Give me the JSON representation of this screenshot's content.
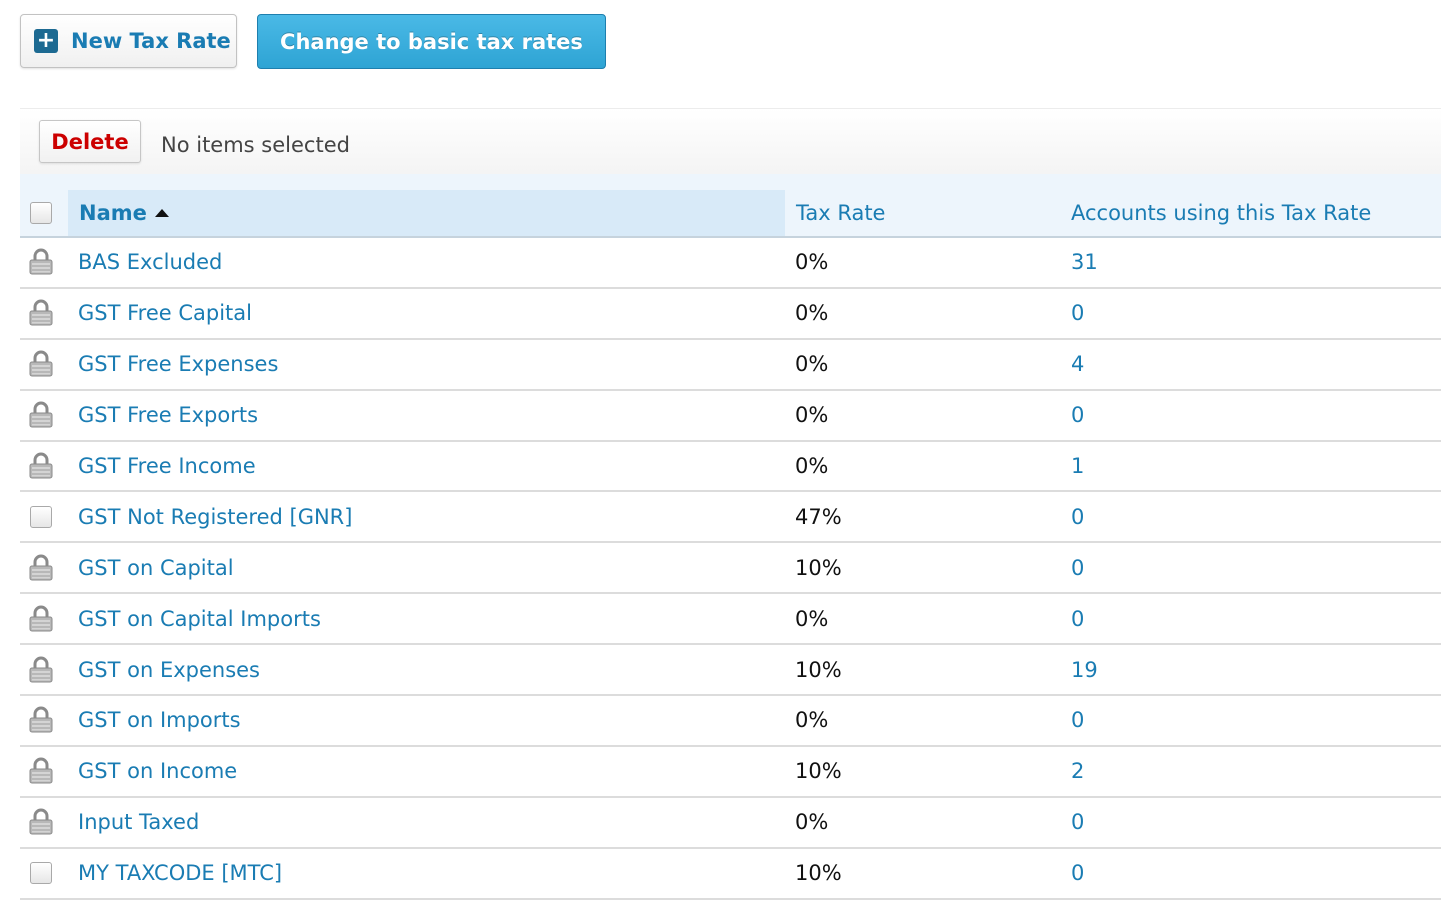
{
  "toolbar": {
    "new_tax_rate_label": "New Tax Rate",
    "change_basic_label": "Change to basic tax rates"
  },
  "action_bar": {
    "delete_label": "Delete",
    "selection_status": "No items selected"
  },
  "table": {
    "columns": {
      "name": "Name",
      "tax_rate": "Tax Rate",
      "accounts": "Accounts using this Tax Rate"
    },
    "sort": {
      "column": "name",
      "direction": "ascending"
    },
    "rows": [
      {
        "name": "BAS Excluded",
        "rate": "0%",
        "accounts": "31",
        "locked": true
      },
      {
        "name": "GST Free Capital",
        "rate": "0%",
        "accounts": "0",
        "locked": true
      },
      {
        "name": "GST Free Expenses",
        "rate": "0%",
        "accounts": "4",
        "locked": true
      },
      {
        "name": "GST Free Exports",
        "rate": "0%",
        "accounts": "0",
        "locked": true
      },
      {
        "name": "GST Free Income",
        "rate": "0%",
        "accounts": "1",
        "locked": true
      },
      {
        "name": "GST Not Registered [GNR]",
        "rate": "47%",
        "accounts": "0",
        "locked": false
      },
      {
        "name": "GST on Capital",
        "rate": "10%",
        "accounts": "0",
        "locked": true
      },
      {
        "name": "GST on Capital Imports",
        "rate": "0%",
        "accounts": "0",
        "locked": true
      },
      {
        "name": "GST on Expenses",
        "rate": "10%",
        "accounts": "19",
        "locked": true
      },
      {
        "name": "GST on Imports",
        "rate": "0%",
        "accounts": "0",
        "locked": true
      },
      {
        "name": "GST on Income",
        "rate": "10%",
        "accounts": "2",
        "locked": true
      },
      {
        "name": "Input Taxed",
        "rate": "0%",
        "accounts": "0",
        "locked": true
      },
      {
        "name": "MY TAXCODE [MTC]",
        "rate": "10%",
        "accounts": "0",
        "locked": false
      }
    ]
  },
  "colors": {
    "link": "#1a7cb3",
    "primary_button": "#35aadb",
    "delete": "#cc0000",
    "header_bg": "#edf5fc",
    "sorted_column_bg": "#d8eaf8"
  }
}
